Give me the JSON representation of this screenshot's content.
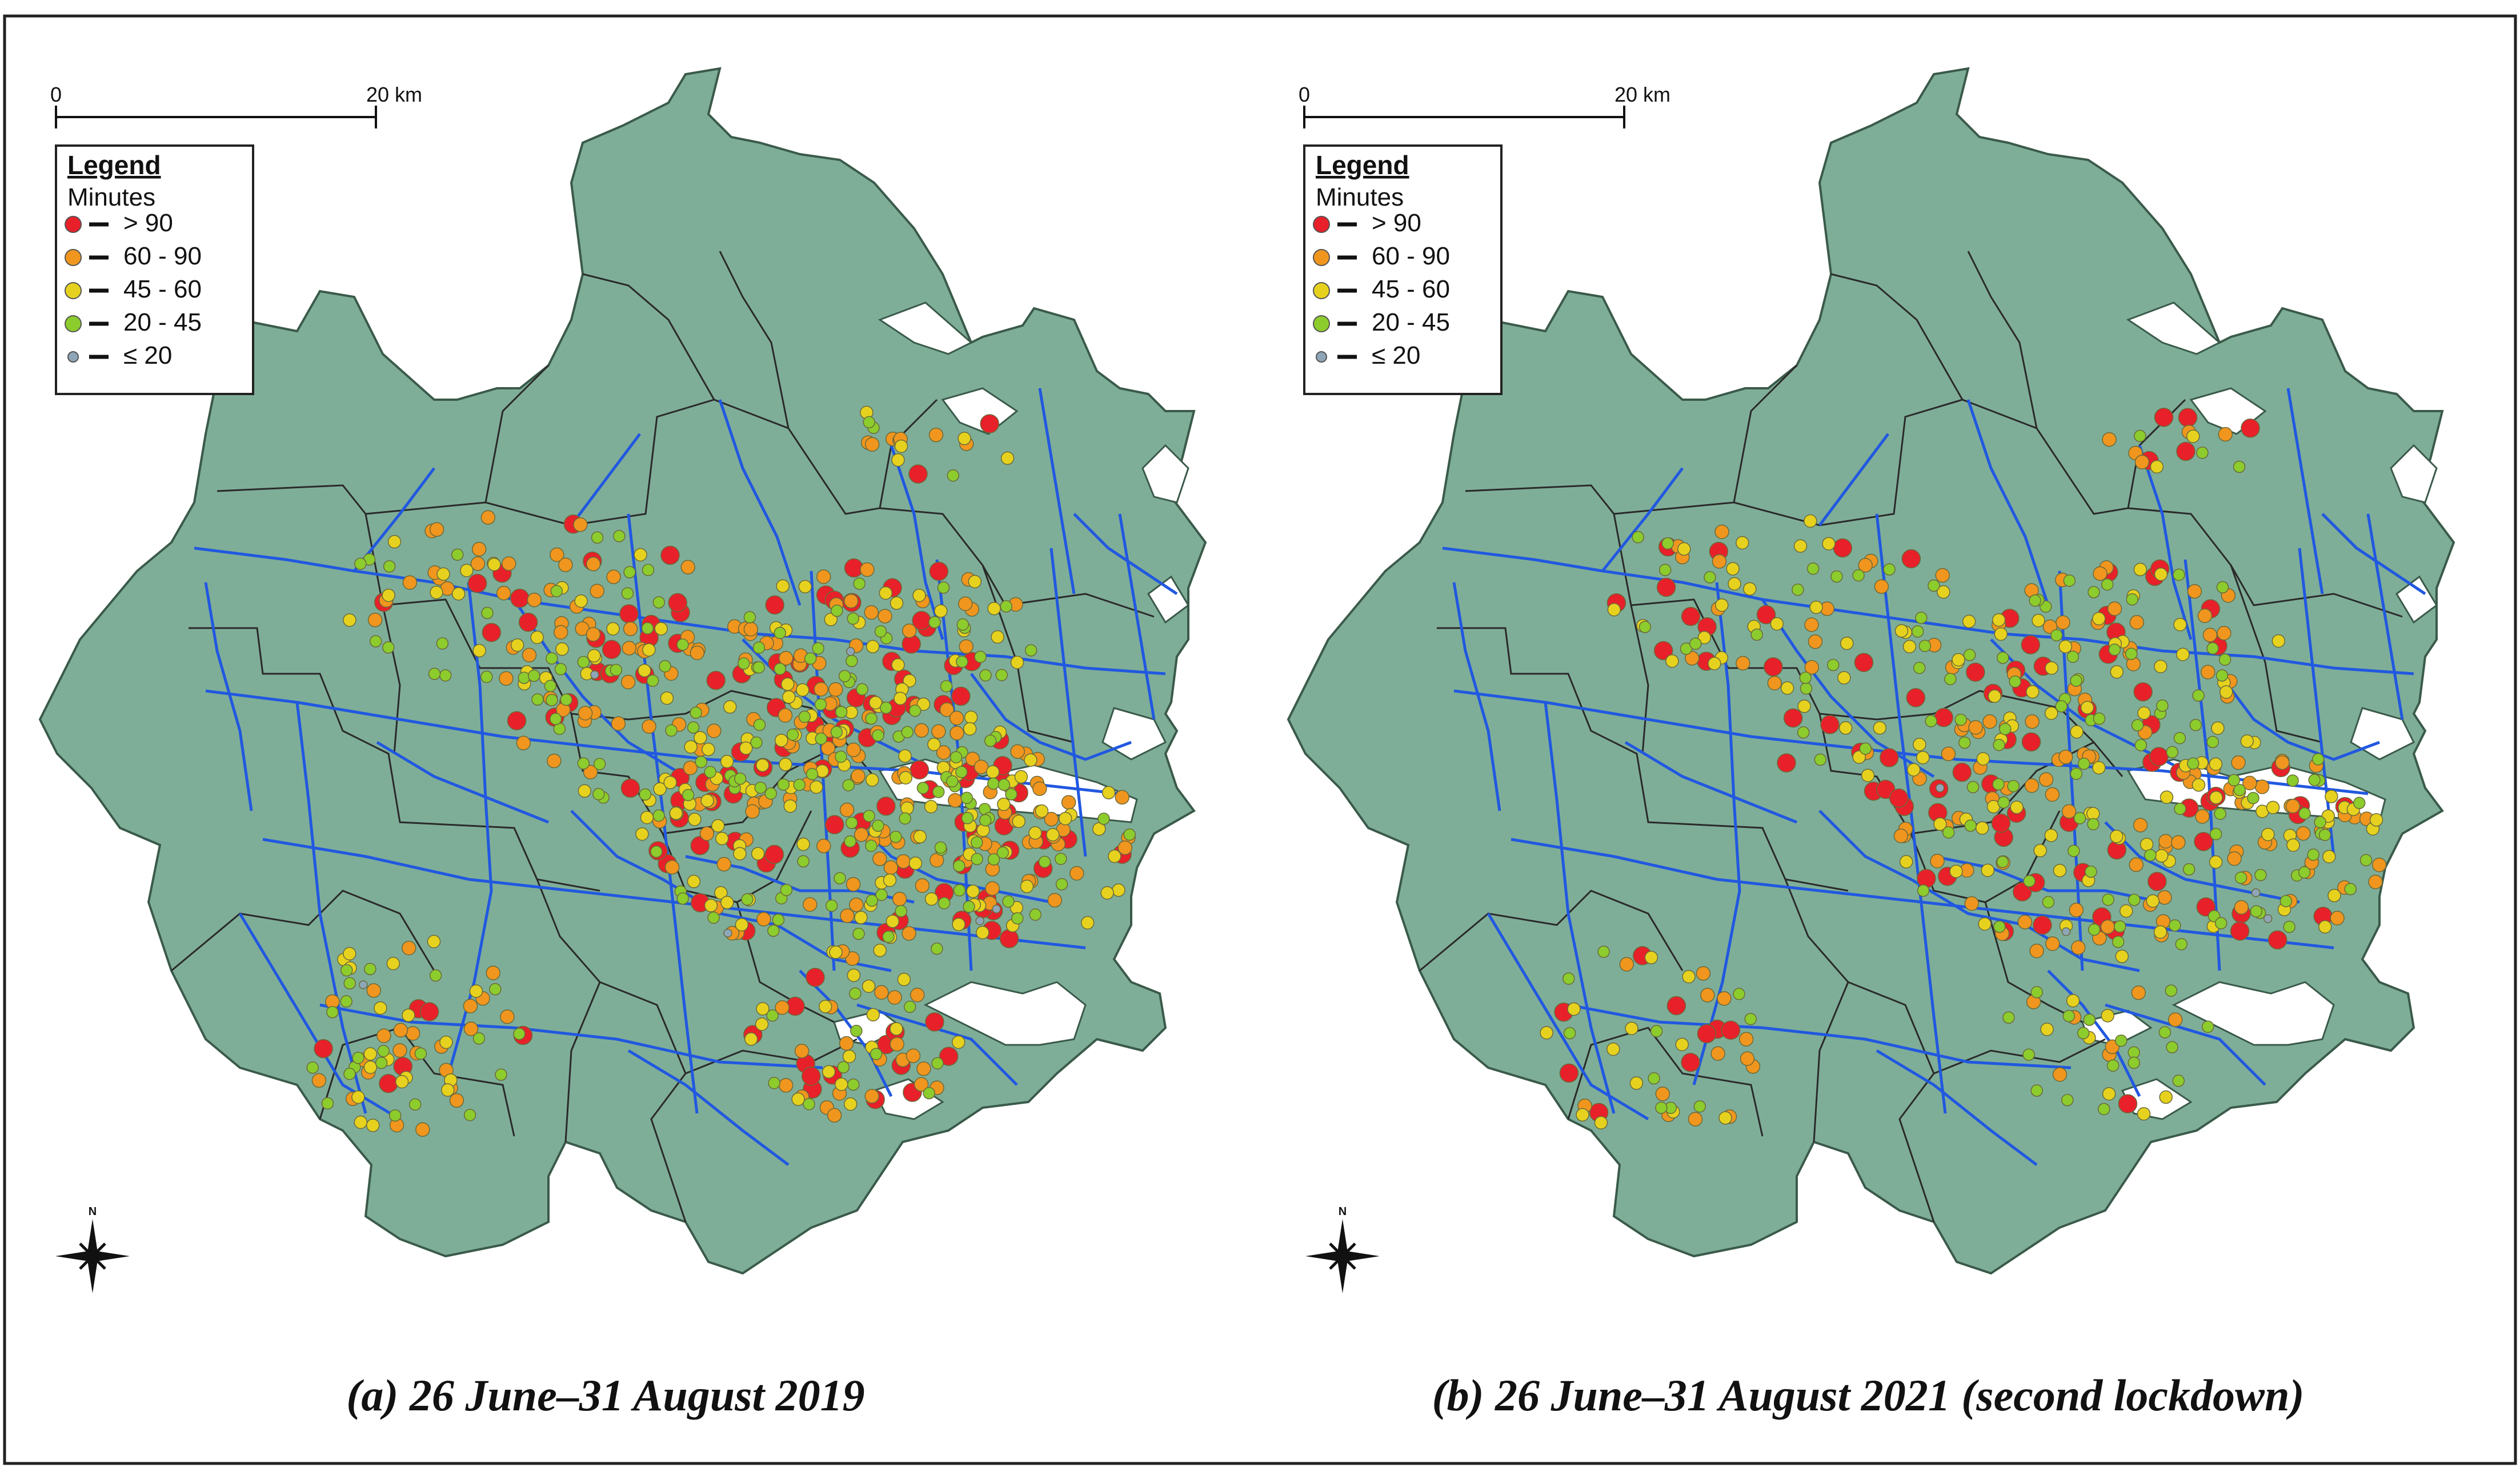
{
  "panels": [
    {
      "id": "a",
      "caption": "(a) 26 June–31 August 2019",
      "scale": {
        "start": "0",
        "end": "20 km"
      },
      "legend": {
        "title": "Legend",
        "subtitle": "Minutes",
        "items": [
          {
            "label": "> 90",
            "color": "#e8202a"
          },
          {
            "label": "60 - 90",
            "color": "#f0961e"
          },
          {
            "label": "45 - 60",
            "color": "#e6d21e"
          },
          {
            "label": "20 - 45",
            "color": "#8ccc2c"
          },
          {
            "label": "≤ 20",
            "color": "#8ea6b8"
          }
        ]
      },
      "north": "N",
      "counts": {
        ">90": 130,
        "60-90": 240,
        "45-60": 200,
        "20-45": 200,
        "<=20": 6
      }
    },
    {
      "id": "b",
      "caption": "(b) 26 June–31 August 2021 (second lockdown)",
      "scale": {
        "start": "0",
        "end": "20 km"
      },
      "legend": {
        "title": "Legend",
        "subtitle": "Minutes",
        "items": [
          {
            "label": "> 90",
            "color": "#e8202a"
          },
          {
            "label": "60 - 90",
            "color": "#f0961e"
          },
          {
            "label": "45 - 60",
            "color": "#e6d21e"
          },
          {
            "label": "20 - 45",
            "color": "#8ccc2c"
          },
          {
            "label": "≤ 20",
            "color": "#8ea6b8"
          }
        ]
      },
      "north": "N",
      "counts": {
        ">90": 95,
        "60-90": 150,
        "45-60": 140,
        "20-45": 150,
        "<=20": 4
      }
    }
  ],
  "colors": {
    "land": "#7fae98",
    "roads": "#2158e0",
    "boundaries": "#2a2a2a",
    "water": "#ffffff"
  }
}
